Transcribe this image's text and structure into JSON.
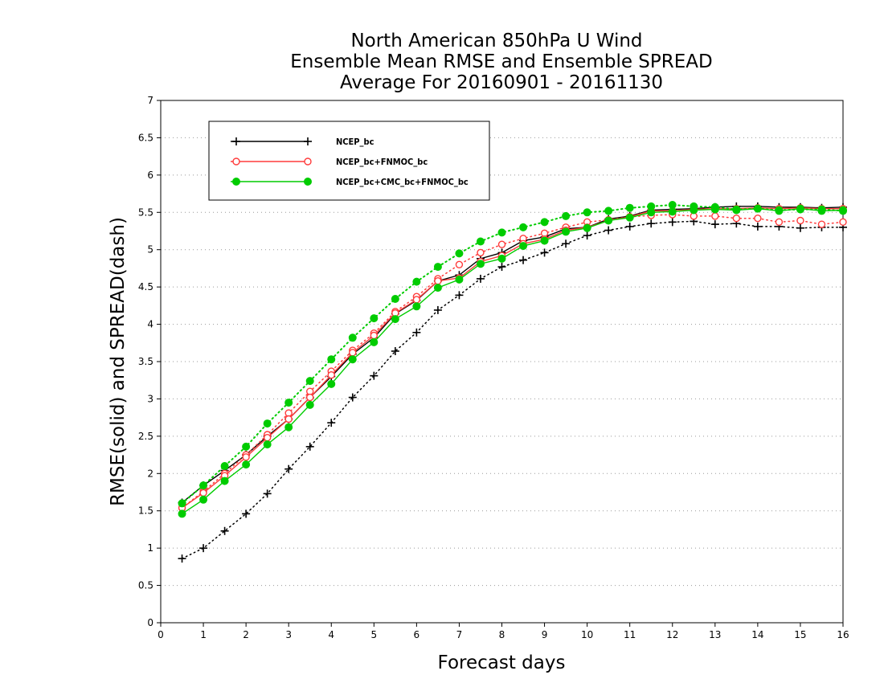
{
  "chart_data": {
    "type": "line",
    "title": [
      "North American 850hPa U Wind",
      "Ensemble Mean RMSE and Ensemble SPREAD",
      "Average For 20160901 - 20161130"
    ],
    "xlabel": "Forecast days",
    "ylabel": "RMSE(solid) and SPREAD(dash)",
    "xlim": [
      0,
      16
    ],
    "ylim": [
      0,
      7
    ],
    "xticks": [
      "0",
      "1",
      "2",
      "3",
      "4",
      "5",
      "6",
      "7",
      "8",
      "9",
      "10",
      "11",
      "12",
      "13",
      "14",
      "15",
      "16"
    ],
    "yticks": [
      "0",
      "0.5",
      "1",
      "1.5",
      "2",
      "2.5",
      "3",
      "3.5",
      "4",
      "4.5",
      "5",
      "5.5",
      "6",
      "6.5",
      "7"
    ],
    "grid": true,
    "legend_position": "top-left",
    "x": [
      0.5,
      1,
      1.5,
      2,
      2.5,
      3,
      3.5,
      4,
      4.5,
      5,
      5.5,
      6,
      6.5,
      7,
      7.5,
      8,
      8.5,
      9,
      9.5,
      10,
      10.5,
      11,
      11.5,
      12,
      12.5,
      13,
      13.5,
      14,
      14.5,
      15,
      15.5,
      16
    ],
    "series": [
      {
        "name": "NCEP_bc",
        "color": "#000000",
        "marker": "plus",
        "rmse": [
          1.61,
          1.84,
          2.04,
          2.25,
          2.5,
          2.73,
          3.02,
          3.3,
          3.6,
          3.82,
          4.14,
          4.32,
          4.58,
          4.66,
          4.88,
          4.96,
          5.12,
          5.17,
          5.28,
          5.3,
          5.41,
          5.45,
          5.53,
          5.54,
          5.55,
          5.57,
          5.58,
          5.58,
          5.57,
          5.57,
          5.56,
          5.57
        ],
        "spread": [
          0.86,
          1.0,
          1.23,
          1.46,
          1.73,
          2.06,
          2.36,
          2.68,
          3.02,
          3.31,
          3.64,
          3.89,
          4.19,
          4.39,
          4.61,
          4.77,
          4.86,
          4.96,
          5.08,
          5.19,
          5.26,
          5.31,
          5.35,
          5.37,
          5.38,
          5.34,
          5.35,
          5.31,
          5.31,
          5.29,
          5.3,
          5.3
        ]
      },
      {
        "name": "NCEP_bc+FNMOC_bc",
        "color": "#ff3b3b",
        "marker": "circle-open",
        "rmse": [
          1.54,
          1.74,
          1.97,
          2.22,
          2.48,
          2.73,
          3.02,
          3.32,
          3.62,
          3.85,
          4.15,
          4.33,
          4.58,
          4.62,
          4.84,
          4.92,
          5.08,
          5.14,
          5.26,
          5.3,
          5.39,
          5.44,
          5.52,
          5.52,
          5.54,
          5.55,
          5.55,
          5.56,
          5.55,
          5.56,
          5.55,
          5.55
        ],
        "spread": [
          1.54,
          1.76,
          2.0,
          2.25,
          2.52,
          2.81,
          3.1,
          3.37,
          3.65,
          3.88,
          4.17,
          4.37,
          4.61,
          4.8,
          4.96,
          5.07,
          5.15,
          5.22,
          5.3,
          5.37,
          5.4,
          5.44,
          5.46,
          5.47,
          5.45,
          5.45,
          5.42,
          5.42,
          5.37,
          5.39,
          5.34,
          5.37
        ]
      },
      {
        "name": "NCEP_bc+CMC_bc+FNMOC_bc",
        "color": "#00cc00",
        "marker": "circle-filled",
        "rmse": [
          1.46,
          1.65,
          1.9,
          2.12,
          2.39,
          2.62,
          2.92,
          3.2,
          3.53,
          3.76,
          4.07,
          4.24,
          4.49,
          4.6,
          4.81,
          4.88,
          5.05,
          5.12,
          5.24,
          5.29,
          5.39,
          5.43,
          5.5,
          5.51,
          5.53,
          5.54,
          5.53,
          5.55,
          5.52,
          5.55,
          5.52,
          5.53
        ],
        "spread": [
          1.6,
          1.84,
          2.1,
          2.36,
          2.67,
          2.95,
          3.24,
          3.53,
          3.82,
          4.08,
          4.34,
          4.57,
          4.77,
          4.95,
          5.11,
          5.23,
          5.3,
          5.37,
          5.45,
          5.5,
          5.52,
          5.56,
          5.58,
          5.6,
          5.58,
          5.57,
          5.54,
          5.55,
          5.53,
          5.54,
          5.54,
          5.52
        ]
      }
    ]
  }
}
